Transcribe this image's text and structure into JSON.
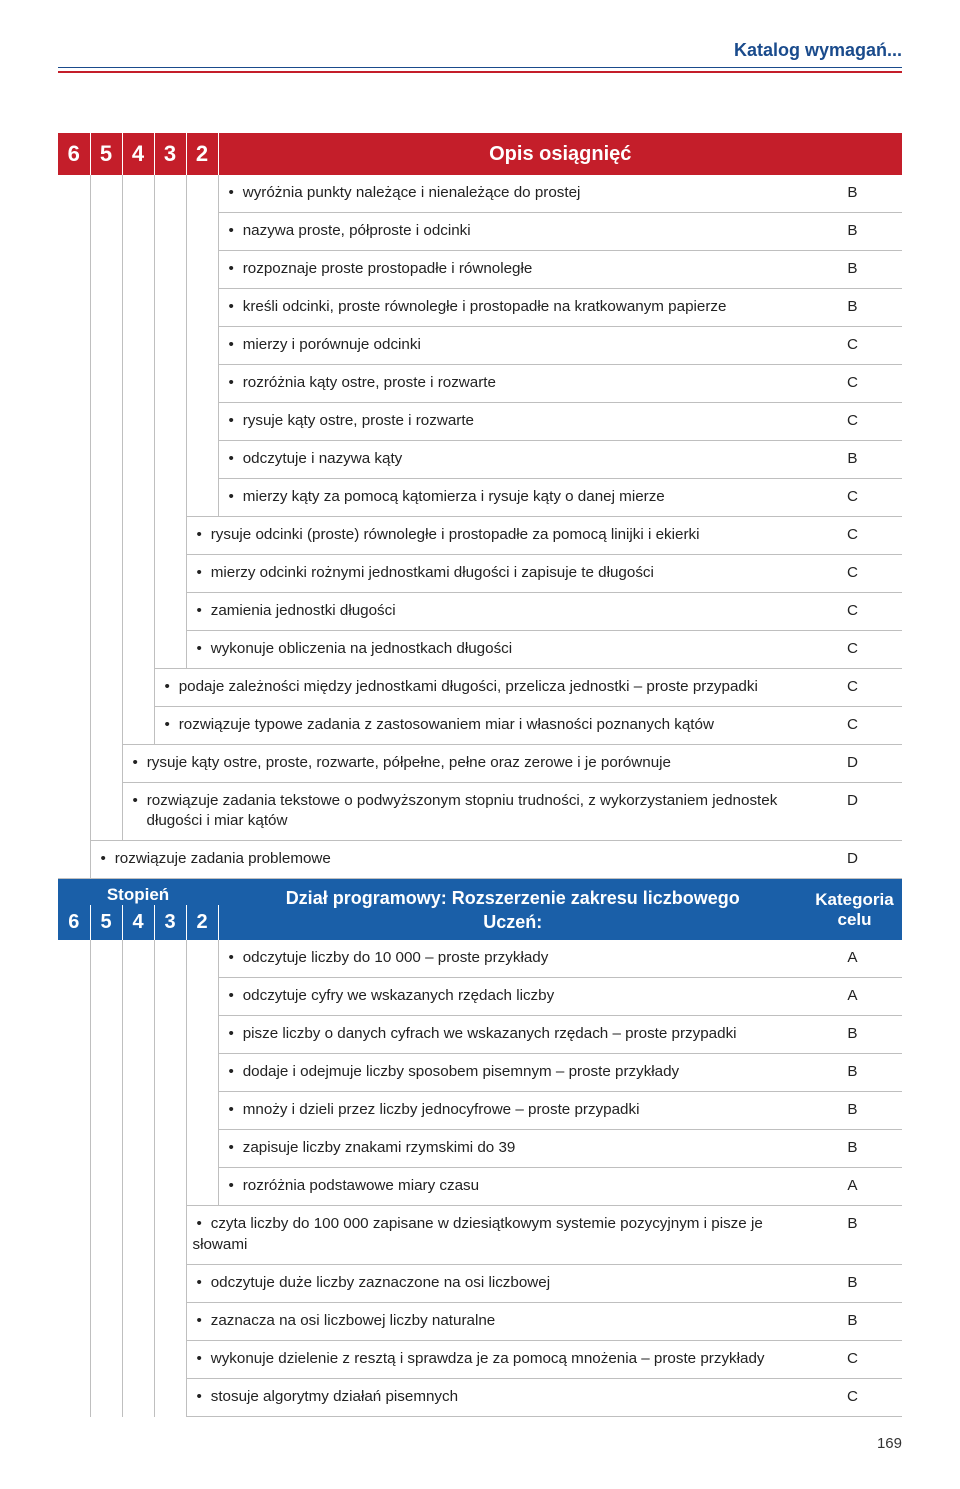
{
  "running_head": "Katalog wymagań...",
  "page_number": "169",
  "colors": {
    "red": "#c41e2a",
    "blue": "#1a5fa8",
    "navy_text": "#1a4b8c",
    "rule_gray": "#bfbfbf"
  },
  "grade_header": {
    "cells": [
      "6",
      "5",
      "4",
      "3",
      "2"
    ]
  },
  "section1": {
    "title": "Opis osiągnięć",
    "rows": [
      {
        "indent": 5,
        "text": "wyróżnia punkty należące i nienależące do prostej",
        "cat": "B"
      },
      {
        "indent": 5,
        "text": "nazywa proste, półproste i odcinki",
        "cat": "B"
      },
      {
        "indent": 5,
        "text": "rozpoznaje proste prostopadłe i równoległe",
        "cat": "B"
      },
      {
        "indent": 5,
        "text": "kreśli odcinki, proste równoległe i prostopadłe na kratkowanym papierze",
        "cat": "B"
      },
      {
        "indent": 5,
        "text": "mierzy i porównuje odcinki",
        "cat": "C"
      },
      {
        "indent": 5,
        "text": "rozróżnia kąty ostre, proste i rozwarte",
        "cat": "C"
      },
      {
        "indent": 5,
        "text": "rysuje kąty ostre, proste i rozwarte",
        "cat": "C"
      },
      {
        "indent": 5,
        "text": "odczytuje i nazywa kąty",
        "cat": "B"
      },
      {
        "indent": 5,
        "text": "mierzy kąty za pomocą kątomierza i rysuje kąty o danej mierze",
        "cat": "C"
      },
      {
        "indent": 4,
        "text": "rysuje odcinki (proste) równoległe i prostopadłe za pomocą linijki i ekierki",
        "cat": "C"
      },
      {
        "indent": 4,
        "text": "mierzy odcinki rożnymi jednostkami długości i zapisuje te długości",
        "cat": "C"
      },
      {
        "indent": 4,
        "text": "zamienia jednostki długości",
        "cat": "C"
      },
      {
        "indent": 4,
        "text": "wykonuje obliczenia na jednostkach długości",
        "cat": "C"
      },
      {
        "indent": 3,
        "text": "podaje zależności między jednostkami długości, przelicza jednostki – proste przypadki",
        "cat": "C"
      },
      {
        "indent": 3,
        "text": "rozwiązuje typowe zadania z zastosowaniem miar i własności poznanych kątów",
        "cat": "C"
      },
      {
        "indent": 2,
        "text": "rysuje kąty ostre, proste, rozwarte, półpełne, pełne oraz zerowe i je porównuje",
        "cat": "D"
      },
      {
        "indent": 2,
        "text": "rozwiązuje zadania tekstowe o podwyższonym stopniu trudności, z wykorzystaniem jednostek długości i miar kątów",
        "cat": "D",
        "multiline": true
      },
      {
        "indent": 1,
        "text": "rozwiązuje zadania problemowe",
        "cat": "D"
      }
    ]
  },
  "section2": {
    "stopien": "Stopień",
    "title_line1": "Dział programowy: Rozszerzenie zakresu liczbowego",
    "title_line2": "Uczeń:",
    "kategoria_line1": "Kategoria",
    "kategoria_line2": "celu",
    "rows": [
      {
        "indent": 5,
        "text": "odczytuje liczby do 10 000 – proste przykłady",
        "cat": "A"
      },
      {
        "indent": 5,
        "text": "odczytuje cyfry we wskazanych rzędach liczby",
        "cat": "A"
      },
      {
        "indent": 5,
        "text": "pisze liczby o danych cyfrach we wskazanych rzędach – proste przypadki",
        "cat": "B"
      },
      {
        "indent": 5,
        "text": "dodaje i odejmuje liczby sposobem pisemnym – proste przykłady",
        "cat": "B"
      },
      {
        "indent": 5,
        "text": "mnoży i dzieli przez liczby jednocyfrowe – proste przypadki",
        "cat": "B"
      },
      {
        "indent": 5,
        "text": "zapisuje liczby znakami rzymskimi do 39",
        "cat": "B"
      },
      {
        "indent": 5,
        "text": "rozróżnia podstawowe miary czasu",
        "cat": "A"
      },
      {
        "indent": 4,
        "text": "czyta liczby do 100 000 zapisane w dziesiątkowym systemie pozycyjnym i pisze je słowami",
        "cat": "B"
      },
      {
        "indent": 4,
        "text": "odczytuje duże liczby zaznaczone na osi liczbowej",
        "cat": "B"
      },
      {
        "indent": 4,
        "text": "zaznacza na osi liczbowej liczby naturalne",
        "cat": "B"
      },
      {
        "indent": 4,
        "text": "wykonuje dzielenie z resztą i sprawdza je za pomocą mnożenia – proste przykłady",
        "cat": "C"
      },
      {
        "indent": 4,
        "text": "stosuje algorytmy działań pisemnych",
        "cat": "C"
      }
    ]
  }
}
